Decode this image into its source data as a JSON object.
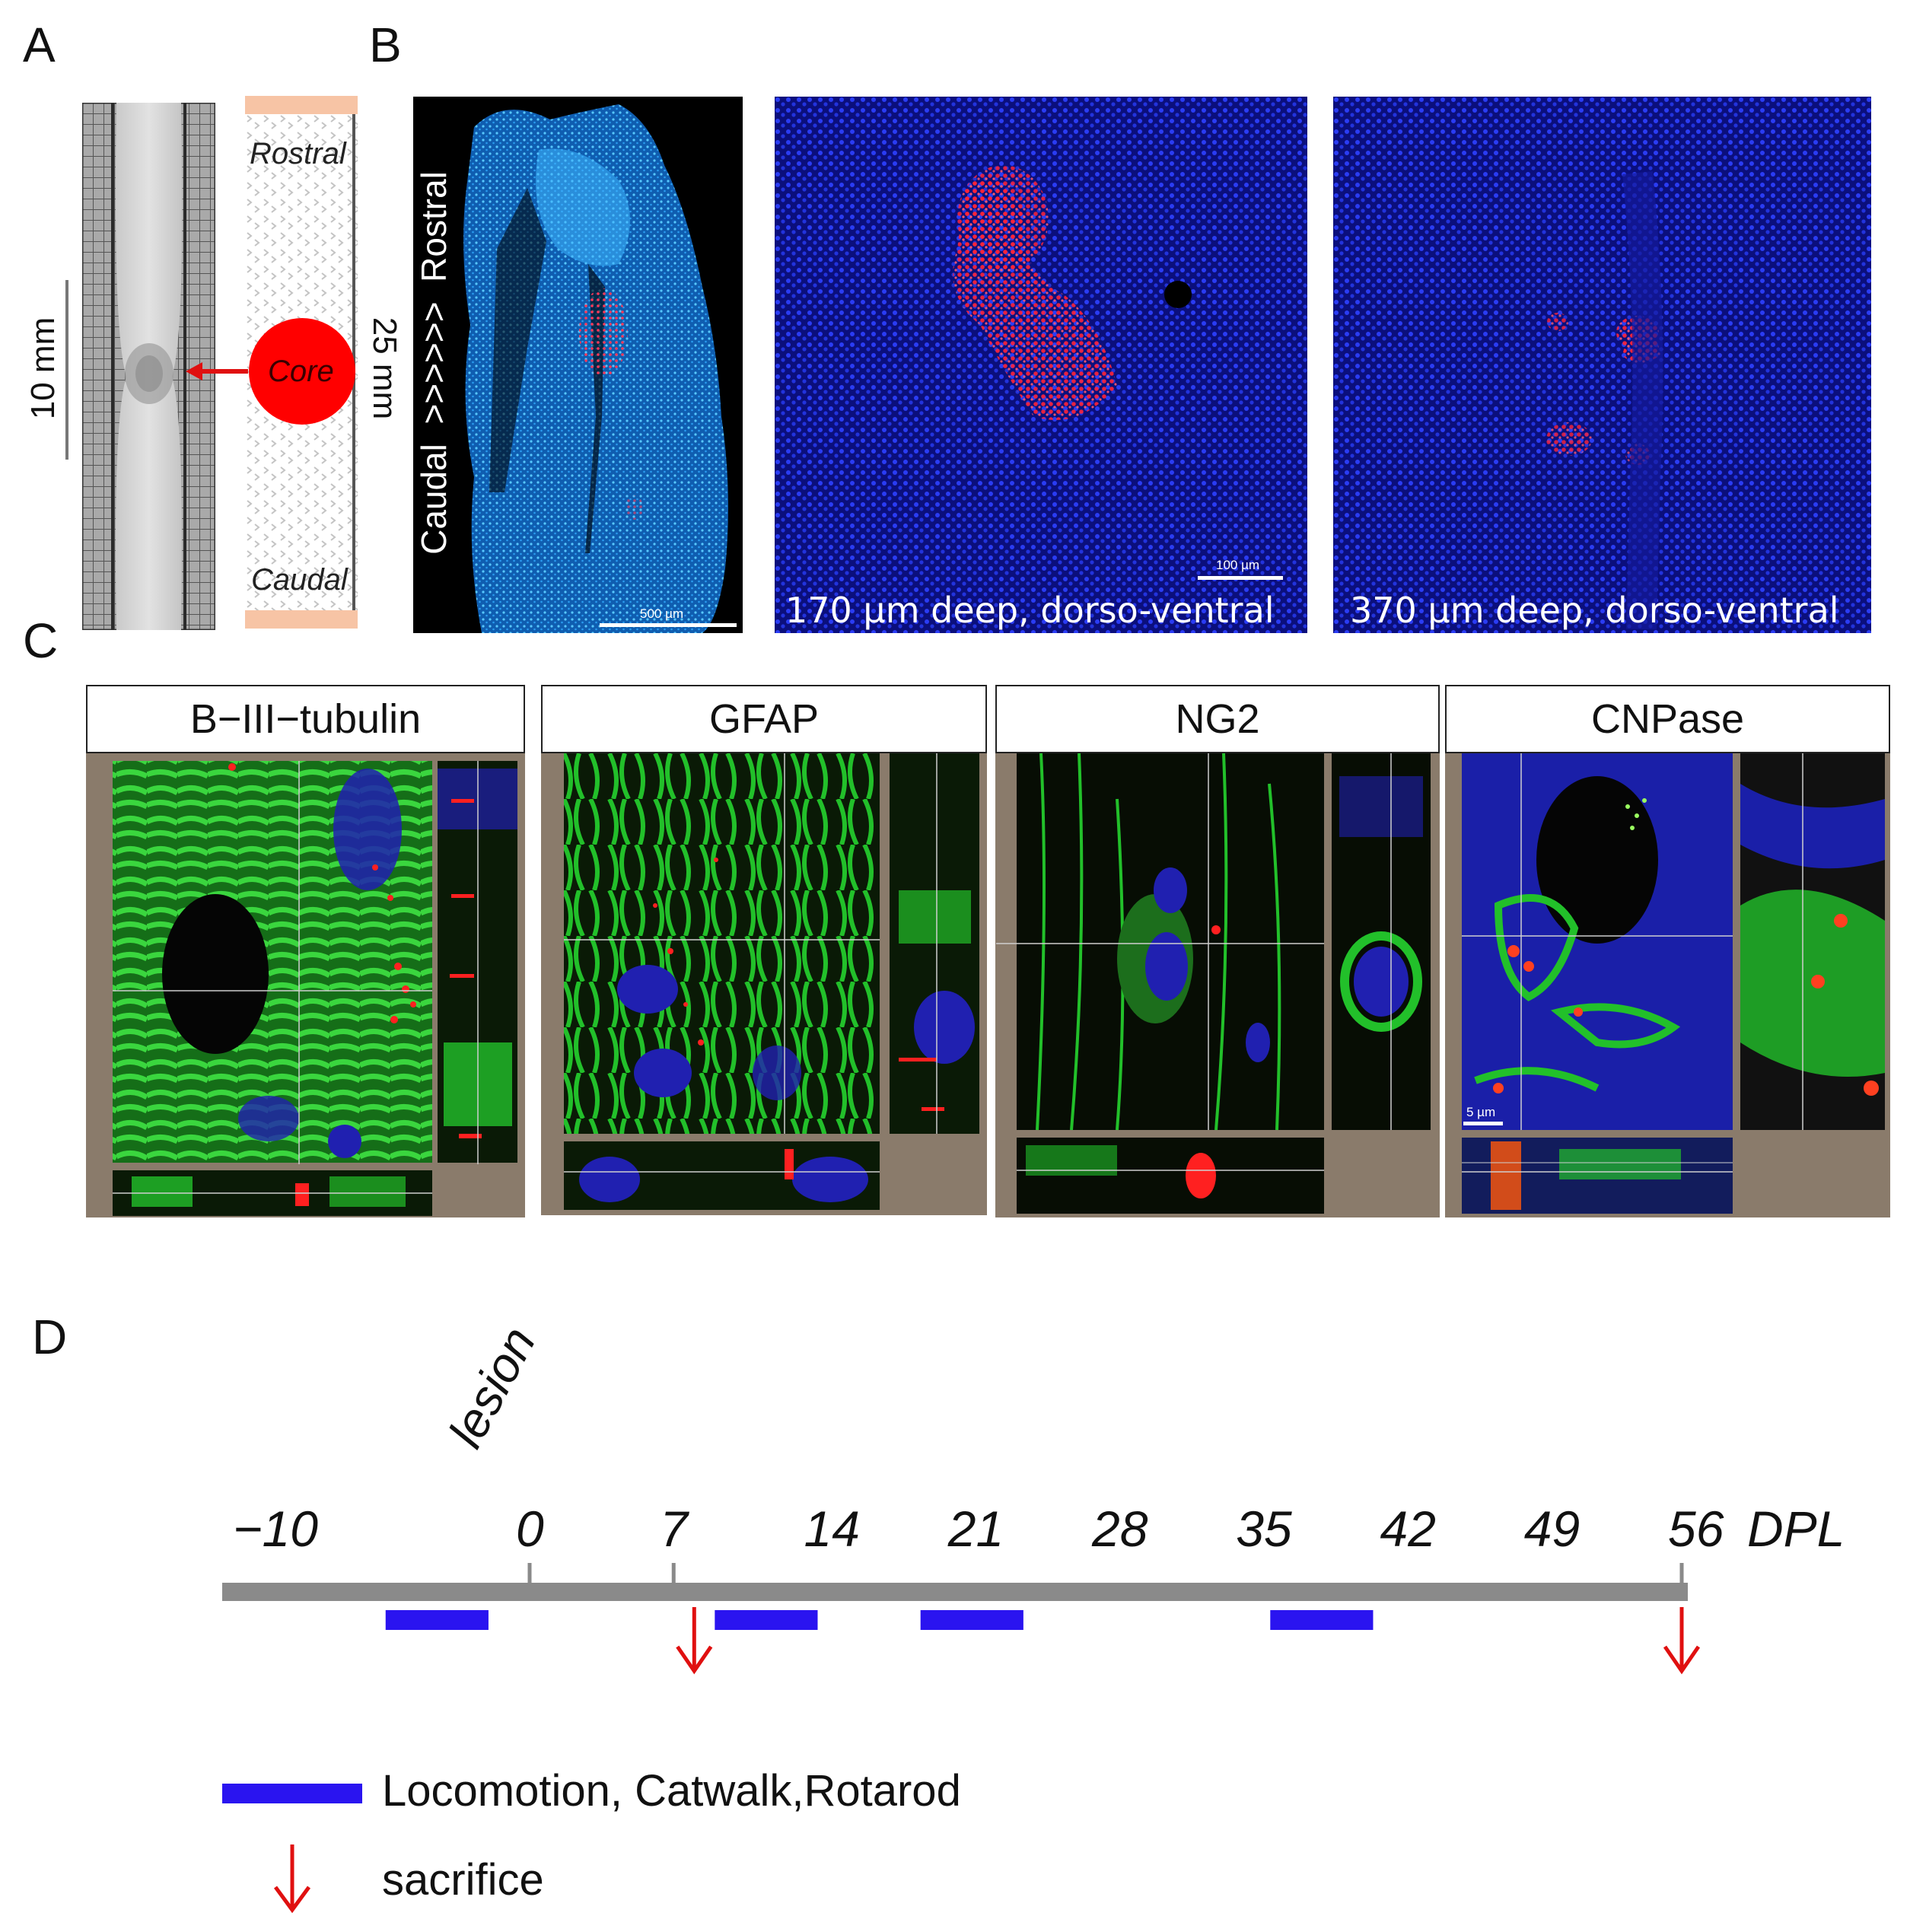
{
  "panel_letters": {
    "a": "A",
    "b": "B",
    "c": "C",
    "d": "D"
  },
  "panel_a": {
    "scale_label": "10 mm",
    "length_label": "25 mm",
    "rostral": "Rostral",
    "core": "Core",
    "caudal": "Caudal",
    "colors": {
      "core": "#ff0000",
      "cap": "#f7c4a5",
      "arrow": "#e01010"
    }
  },
  "panel_b": {
    "vertical_label": "Caudal  >>>>>>  Rostral",
    "scale_500": "500 µm",
    "scale_100": "100 µm",
    "caption_170": "170 µm deep, dorso-ventral",
    "caption_370": "370 µm deep, dorso-ventral",
    "colors": {
      "nuclei": "#2233ee",
      "marker": "#ff1a2a",
      "tissue": "#1e88d8"
    }
  },
  "panel_c": {
    "headers": [
      "B−III−tubulin",
      "GFAP",
      "NG2",
      "CNPase"
    ],
    "scale_5um": "5 µm",
    "colors": {
      "frame": "#8a7b6b",
      "fiber": "#22c02a",
      "nuclei": "#2020b0",
      "marker": "#ff2020"
    }
  },
  "panel_d": {
    "lesion_label": "lesion",
    "unit": "DPL",
    "ticks": [
      "−10",
      "0",
      "7",
      "14",
      "21",
      "28",
      "35",
      "42",
      "49",
      "56"
    ],
    "tick_values": [
      -10,
      0,
      7,
      14,
      21,
      28,
      35,
      42,
      49,
      56
    ],
    "behavior_windows": [
      [
        -7,
        -2
      ],
      [
        9,
        14
      ],
      [
        19,
        24
      ],
      [
        36,
        41
      ]
    ],
    "sacrifice_days": [
      8,
      56
    ],
    "legend": {
      "behavior": "Locomotion, Catwalk,Rotarod",
      "sacrifice": "sacrifice"
    },
    "colors": {
      "axis": "#8a8a8a",
      "behavior": "#2a14f0",
      "sacrifice": "#e01010"
    }
  }
}
